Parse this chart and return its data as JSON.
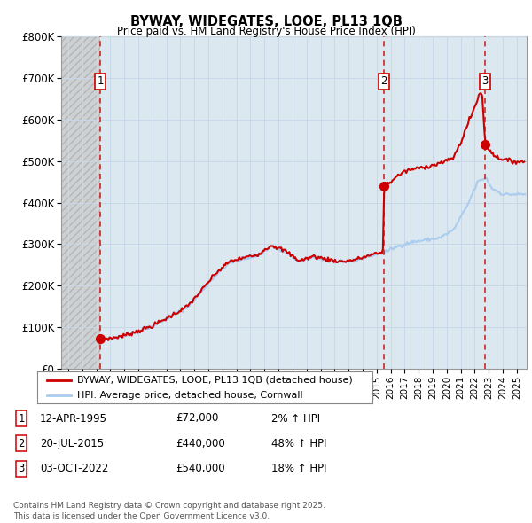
{
  "title_line1": "BYWAY, WIDEGATES, LOOE, PL13 1QB",
  "title_line2": "Price paid vs. HM Land Registry's House Price Index (HPI)",
  "ylim": [
    0,
    800000
  ],
  "yticks": [
    0,
    100000,
    200000,
    300000,
    400000,
    500000,
    600000,
    700000,
    800000
  ],
  "ytick_labels": [
    "£0",
    "£100K",
    "£200K",
    "£300K",
    "£400K",
    "£500K",
    "£600K",
    "£700K",
    "£800K"
  ],
  "xlim_start": 1992.5,
  "xlim_end": 2025.7,
  "hatch_end": 1995.28,
  "sale_dates": [
    1995.28,
    2015.54,
    2022.75
  ],
  "sale_prices": [
    72000,
    440000,
    540000
  ],
  "sale_labels": [
    "1",
    "2",
    "3"
  ],
  "hpi_line_color": "#aaccee",
  "property_line_color": "#cc0000",
  "sale_marker_color": "#cc0000",
  "dashed_line_color": "#cc0000",
  "grid_color": "#c8d8e8",
  "plot_bg_color": "#dce8f0",
  "legend_entries": [
    "BYWAY, WIDEGATES, LOOE, PL13 1QB (detached house)",
    "HPI: Average price, detached house, Cornwall"
  ],
  "table_data": [
    [
      "1",
      "12-APR-1995",
      "£72,000",
      "2% ↑ HPI"
    ],
    [
      "2",
      "20-JUL-2015",
      "£440,000",
      "48% ↑ HPI"
    ],
    [
      "3",
      "03-OCT-2022",
      "£540,000",
      "18% ↑ HPI"
    ]
  ],
  "footnote": "Contains HM Land Registry data © Crown copyright and database right 2025.\nThis data is licensed under the Open Government Licence v3.0."
}
